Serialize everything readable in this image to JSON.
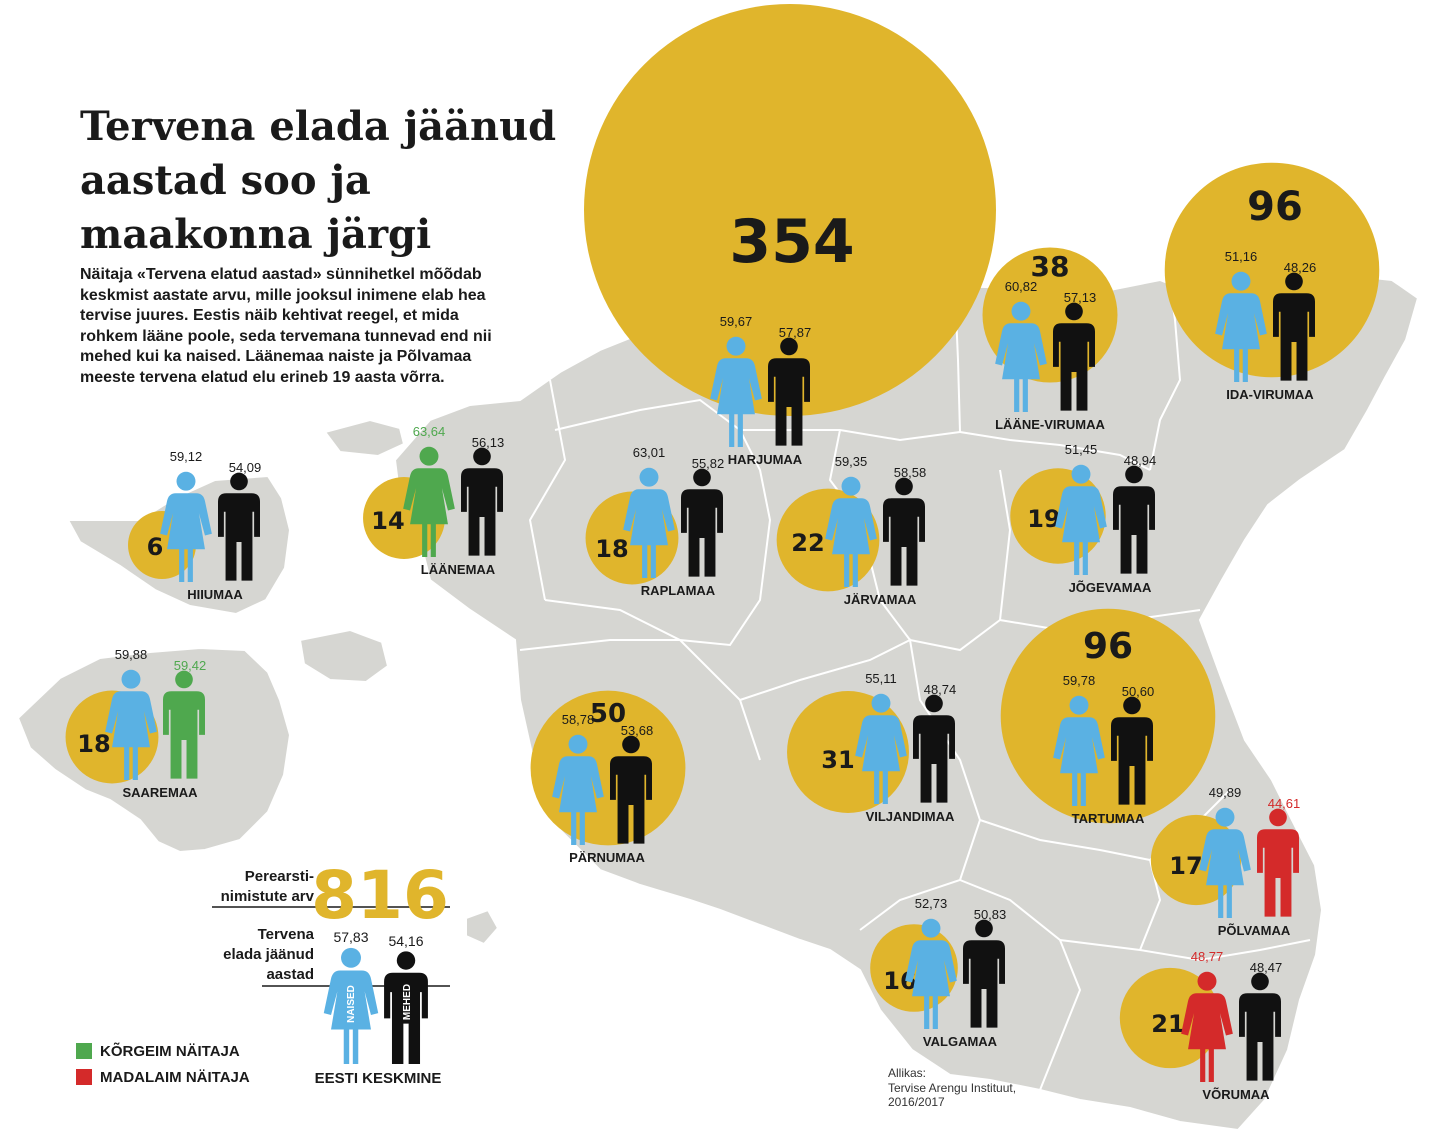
{
  "title": "Tervena elada jäänud aastad soo ja maakonna järgi",
  "intro": "Näitaja «Tervena elatud aastad» sünnihetkel mõõdab keskmist aastate arvu, mille jooksul inimene elab hea tervise juures. Eestis näib kehtivat reegel, et mida rohkem lääne poole, seda tervemana tunnevad end nii mehed kui ka naised. Läänemaa naiste ja Põlvamaa meeste tervena elatud elu erineb 19 aasta võrra.",
  "colors": {
    "land": "#d6d6d2",
    "border": "#ffffff",
    "circle": "#e0b52c",
    "woman": "#5ab1e3",
    "man": "#111111",
    "highest": "#4fa84e",
    "lowest": "#d42a2a",
    "text": "#1a1a1a"
  },
  "counties": [
    {
      "name": "HARJUMAA",
      "clinics": "354",
      "women": "59,67",
      "men": "57,87"
    },
    {
      "name": "IDA-VIRUMAA",
      "clinics": "96",
      "women": "51,16",
      "men": "48,26"
    },
    {
      "name": "LÄÄNE-VIRUMAA",
      "clinics": "38",
      "women": "60,82",
      "men": "57,13"
    },
    {
      "name": "HIIUMAA",
      "clinics": "6",
      "women": "59,12",
      "men": "54,09"
    },
    {
      "name": "LÄÄNEMAA",
      "clinics": "14",
      "women": "63,64",
      "men": "56,13",
      "women_rank": "highest"
    },
    {
      "name": "RAPLAMAA",
      "clinics": "18",
      "women": "63,01",
      "men": "55,82"
    },
    {
      "name": "JÄRVAMAA",
      "clinics": "22",
      "women": "59,35",
      "men": "58,58"
    },
    {
      "name": "JÕGEVAMAA",
      "clinics": "19",
      "women": "51,45",
      "men": "48,94"
    },
    {
      "name": "SAAREMAA",
      "clinics": "18",
      "women": "59,88",
      "men": "59,42",
      "men_rank": "highest"
    },
    {
      "name": "PÄRNUMAA",
      "clinics": "50",
      "women": "58,78",
      "men": "53,68"
    },
    {
      "name": "VILJANDIMAA",
      "clinics": "31",
      "women": "55,11",
      "men": "48,74"
    },
    {
      "name": "TARTUMAA",
      "clinics": "96",
      "women": "59,78",
      "men": "50,60"
    },
    {
      "name": "PÕLVAMAA",
      "clinics": "17",
      "women": "49,89",
      "men": "44,61",
      "men_rank": "lowest"
    },
    {
      "name": "VALGAMAA",
      "clinics": "16",
      "women": "52,73",
      "men": "50,83"
    },
    {
      "name": "VÕRUMAA",
      "clinics": "21",
      "women": "48,77",
      "men": "48,47",
      "women_rank": "lowest"
    }
  ],
  "national": {
    "clinics_label_1": "Perearsti-",
    "clinics_label_2": "nimistute arv",
    "clinics": "816",
    "years_label_1": "Tervena",
    "years_label_2": "elada jäänud",
    "years_label_3": "aastad",
    "women": "57,83",
    "men": "54,16",
    "women_tag": "NAISED",
    "men_tag": "MEHED",
    "caption": "EESTI KESKMINE"
  },
  "legend": [
    {
      "label": "KÕRGEIM NÄITAJA",
      "color": "#4fa84e"
    },
    {
      "label": "MADALAIM NÄITAJA",
      "color": "#d42a2a"
    }
  ],
  "source": {
    "line1": "Allikas:",
    "line2": "Tervise Arengu Instituut,",
    "line3": "2016/2017"
  }
}
